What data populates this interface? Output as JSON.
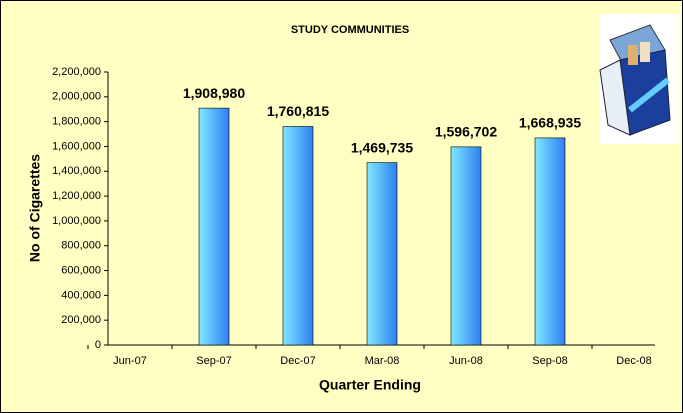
{
  "chart_data": {
    "type": "bar",
    "title": "STUDY COMMUNITIES",
    "x_label": "Quarter Ending",
    "y_label": "No of Cigarettes",
    "categories": [
      "Jun-07",
      "Sep-07",
      "Dec-07",
      "Mar-08",
      "Jun-08",
      "Sep-08",
      "Dec-08"
    ],
    "values": [
      null,
      1908980,
      1760815,
      1469735,
      1596702,
      1668935,
      null
    ],
    "value_labels": [
      null,
      "1,908,980",
      "1,760,815",
      "1,469,735",
      "1,596,702",
      "1,668,935",
      null
    ],
    "color": "#2f7ff0",
    "ylim": [
      0,
      2200000
    ],
    "yticks": [
      0,
      {
        "value": 200000,
        "label": "200,000"
      },
      {
        "value": 400000,
        "label": "400,000"
      },
      {
        "value": 600000,
        "label": "600,000"
      },
      {
        "value": 800000,
        "label": "800,000"
      },
      {
        "value": 1000000,
        "label": "1,000,000"
      },
      {
        "value": 1200000,
        "label": "1,200,000"
      },
      {
        "value": 1400000,
        "label": "1,400,000"
      },
      {
        "value": 1600000,
        "label": "1,600,000"
      },
      {
        "value": 1800000,
        "label": "1,800,000"
      },
      {
        "value": 2000000,
        "label": "2,000,000"
      },
      {
        "value": 2200000,
        "label": "2,200,000"
      }
    ],
    "grid": false
  }
}
